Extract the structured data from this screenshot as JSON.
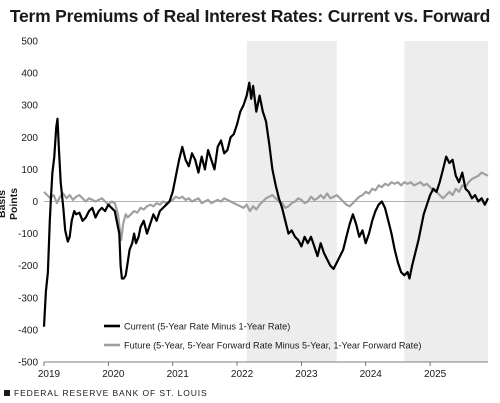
{
  "chart_data": {
    "type": "line",
    "title": "Term Premiums of Real Interest Rates: Current vs. Forward",
    "xlabel": "",
    "ylabel": "Basis Points",
    "xlim": [
      2019.0,
      2025.9
    ],
    "ylim": [
      -500,
      500
    ],
    "yticks": [
      500,
      400,
      300,
      200,
      100,
      0,
      -100,
      -200,
      -300,
      -400,
      -500
    ],
    "xticks": [
      {
        "label": "2019",
        "value": 2019.0
      },
      {
        "label": "2020",
        "value": 2020.0
      },
      {
        "label": "2021",
        "value": 2021.0
      },
      {
        "label": "2022",
        "value": 2022.0
      },
      {
        "label": "2023",
        "value": 2023.0
      },
      {
        "label": "2024",
        "value": 2024.0
      },
      {
        "label": "2025",
        "value": 2025.0
      }
    ],
    "grid": false,
    "legend_position": "bottom-left",
    "shaded_periods": [
      [
        2022.15,
        2023.55
      ],
      [
        2024.6,
        2025.9
      ]
    ],
    "series": [
      {
        "name": "Current (5-Year Rate Minus 1-Year Rate)",
        "color": "#000000",
        "points": [
          [
            2019.0,
            -390
          ],
          [
            2019.03,
            -280
          ],
          [
            2019.06,
            -220
          ],
          [
            2019.09,
            -60
          ],
          [
            2019.11,
            20
          ],
          [
            2019.13,
            90
          ],
          [
            2019.16,
            140
          ],
          [
            2019.19,
            230
          ],
          [
            2019.21,
            258
          ],
          [
            2019.23,
            170
          ],
          [
            2019.26,
            60
          ],
          [
            2019.3,
            -20
          ],
          [
            2019.33,
            -90
          ],
          [
            2019.37,
            -125
          ],
          [
            2019.4,
            -110
          ],
          [
            2019.43,
            -60
          ],
          [
            2019.47,
            -30
          ],
          [
            2019.5,
            -40
          ],
          [
            2019.55,
            -35
          ],
          [
            2019.6,
            -60
          ],
          [
            2019.65,
            -50
          ],
          [
            2019.7,
            -30
          ],
          [
            2019.75,
            -20
          ],
          [
            2019.8,
            -50
          ],
          [
            2019.85,
            -30
          ],
          [
            2019.9,
            -20
          ],
          [
            2019.95,
            -30
          ],
          [
            2020.0,
            -10
          ],
          [
            2020.05,
            -20
          ],
          [
            2020.1,
            -30
          ],
          [
            2020.13,
            -60
          ],
          [
            2020.17,
            -100
          ],
          [
            2020.19,
            -200
          ],
          [
            2020.21,
            -240
          ],
          [
            2020.24,
            -240
          ],
          [
            2020.27,
            -230
          ],
          [
            2020.3,
            -190
          ],
          [
            2020.33,
            -150
          ],
          [
            2020.37,
            -130
          ],
          [
            2020.4,
            -100
          ],
          [
            2020.43,
            -130
          ],
          [
            2020.47,
            -110
          ],
          [
            2020.5,
            -80
          ],
          [
            2020.55,
            -60
          ],
          [
            2020.6,
            -100
          ],
          [
            2020.65,
            -70
          ],
          [
            2020.7,
            -40
          ],
          [
            2020.75,
            -60
          ],
          [
            2020.8,
            -30
          ],
          [
            2020.85,
            -20
          ],
          [
            2020.9,
            -10
          ],
          [
            2020.95,
            0
          ],
          [
            2021.0,
            30
          ],
          [
            2021.05,
            80
          ],
          [
            2021.1,
            130
          ],
          [
            2021.15,
            170
          ],
          [
            2021.2,
            130
          ],
          [
            2021.25,
            110
          ],
          [
            2021.3,
            150
          ],
          [
            2021.35,
            130
          ],
          [
            2021.4,
            90
          ],
          [
            2021.45,
            140
          ],
          [
            2021.5,
            100
          ],
          [
            2021.55,
            160
          ],
          [
            2021.6,
            130
          ],
          [
            2021.65,
            100
          ],
          [
            2021.7,
            170
          ],
          [
            2021.75,
            190
          ],
          [
            2021.8,
            150
          ],
          [
            2021.85,
            160
          ],
          [
            2021.9,
            200
          ],
          [
            2021.95,
            210
          ],
          [
            2022.0,
            240
          ],
          [
            2022.05,
            280
          ],
          [
            2022.1,
            300
          ],
          [
            2022.15,
            330
          ],
          [
            2022.19,
            370
          ],
          [
            2022.22,
            320
          ],
          [
            2022.25,
            360
          ],
          [
            2022.3,
            280
          ],
          [
            2022.35,
            330
          ],
          [
            2022.4,
            280
          ],
          [
            2022.45,
            250
          ],
          [
            2022.5,
            180
          ],
          [
            2022.55,
            100
          ],
          [
            2022.6,
            50
          ],
          [
            2022.65,
            10
          ],
          [
            2022.7,
            -20
          ],
          [
            2022.75,
            -60
          ],
          [
            2022.8,
            -100
          ],
          [
            2022.85,
            -90
          ],
          [
            2022.9,
            -110
          ],
          [
            2022.95,
            -120
          ],
          [
            2023.0,
            -140
          ],
          [
            2023.05,
            -110
          ],
          [
            2023.1,
            -130
          ],
          [
            2023.15,
            -110
          ],
          [
            2023.2,
            -140
          ],
          [
            2023.25,
            -170
          ],
          [
            2023.3,
            -130
          ],
          [
            2023.35,
            -160
          ],
          [
            2023.4,
            -180
          ],
          [
            2023.45,
            -200
          ],
          [
            2023.5,
            -210
          ],
          [
            2023.55,
            -190
          ],
          [
            2023.6,
            -170
          ],
          [
            2023.65,
            -150
          ],
          [
            2023.7,
            -110
          ],
          [
            2023.75,
            -70
          ],
          [
            2023.8,
            -40
          ],
          [
            2023.85,
            -70
          ],
          [
            2023.9,
            -110
          ],
          [
            2023.95,
            -90
          ],
          [
            2024.0,
            -130
          ],
          [
            2024.05,
            -100
          ],
          [
            2024.1,
            -60
          ],
          [
            2024.15,
            -30
          ],
          [
            2024.2,
            -10
          ],
          [
            2024.25,
            0
          ],
          [
            2024.3,
            -20
          ],
          [
            2024.35,
            -60
          ],
          [
            2024.4,
            -100
          ],
          [
            2024.45,
            -150
          ],
          [
            2024.5,
            -190
          ],
          [
            2024.55,
            -220
          ],
          [
            2024.6,
            -230
          ],
          [
            2024.65,
            -220
          ],
          [
            2024.68,
            -240
          ],
          [
            2024.72,
            -200
          ],
          [
            2024.77,
            -160
          ],
          [
            2024.82,
            -120
          ],
          [
            2024.86,
            -80
          ],
          [
            2024.9,
            -40
          ],
          [
            2024.95,
            -10
          ],
          [
            2025.0,
            20
          ],
          [
            2025.05,
            40
          ],
          [
            2025.1,
            30
          ],
          [
            2025.15,
            60
          ],
          [
            2025.2,
            100
          ],
          [
            2025.25,
            140
          ],
          [
            2025.3,
            120
          ],
          [
            2025.35,
            130
          ],
          [
            2025.4,
            80
          ],
          [
            2025.45,
            60
          ],
          [
            2025.5,
            90
          ],
          [
            2025.55,
            40
          ],
          [
            2025.6,
            30
          ],
          [
            2025.65,
            10
          ],
          [
            2025.7,
            20
          ],
          [
            2025.75,
            0
          ],
          [
            2025.8,
            10
          ],
          [
            2025.85,
            -10
          ],
          [
            2025.9,
            10
          ]
        ]
      },
      {
        "name": "Future (5-Year, 5-Year Forward Rate Minus 5-Year, 1-Year Forward Rate)",
        "color": "#a0a0a0",
        "points": [
          [
            2019.0,
            30
          ],
          [
            2019.05,
            20
          ],
          [
            2019.1,
            10
          ],
          [
            2019.15,
            20
          ],
          [
            2019.2,
            -5
          ],
          [
            2019.25,
            15
          ],
          [
            2019.3,
            25
          ],
          [
            2019.35,
            10
          ],
          [
            2019.4,
            20
          ],
          [
            2019.45,
            5
          ],
          [
            2019.5,
            15
          ],
          [
            2019.55,
            20
          ],
          [
            2019.6,
            10
          ],
          [
            2019.65,
            0
          ],
          [
            2019.7,
            10
          ],
          [
            2019.75,
            5
          ],
          [
            2019.8,
            0
          ],
          [
            2019.85,
            5
          ],
          [
            2019.9,
            10
          ],
          [
            2019.95,
            0
          ],
          [
            2020.0,
            -10
          ],
          [
            2020.05,
            0
          ],
          [
            2020.1,
            -5
          ],
          [
            2020.15,
            -40
          ],
          [
            2020.18,
            -90
          ],
          [
            2020.2,
            -120
          ],
          [
            2020.23,
            -70
          ],
          [
            2020.27,
            -40
          ],
          [
            2020.3,
            -50
          ],
          [
            2020.35,
            -40
          ],
          [
            2020.4,
            -30
          ],
          [
            2020.45,
            -35
          ],
          [
            2020.5,
            -20
          ],
          [
            2020.55,
            -25
          ],
          [
            2020.6,
            -15
          ],
          [
            2020.65,
            -10
          ],
          [
            2020.7,
            -15
          ],
          [
            2020.75,
            -5
          ],
          [
            2020.8,
            -10
          ],
          [
            2020.85,
            0
          ],
          [
            2020.9,
            -5
          ],
          [
            2020.95,
            0
          ],
          [
            2021.0,
            5
          ],
          [
            2021.05,
            15
          ],
          [
            2021.1,
            10
          ],
          [
            2021.15,
            15
          ],
          [
            2021.2,
            5
          ],
          [
            2021.25,
            10
          ],
          [
            2021.3,
            0
          ],
          [
            2021.35,
            5
          ],
          [
            2021.4,
            10
          ],
          [
            2021.45,
            -5
          ],
          [
            2021.5,
            0
          ],
          [
            2021.55,
            5
          ],
          [
            2021.6,
            -5
          ],
          [
            2021.65,
            0
          ],
          [
            2021.7,
            5
          ],
          [
            2021.75,
            0
          ],
          [
            2021.8,
            10
          ],
          [
            2021.85,
            5
          ],
          [
            2021.9,
            0
          ],
          [
            2021.95,
            -5
          ],
          [
            2022.0,
            -10
          ],
          [
            2022.05,
            -15
          ],
          [
            2022.1,
            -20
          ],
          [
            2022.15,
            -10
          ],
          [
            2022.2,
            -30
          ],
          [
            2022.25,
            -15
          ],
          [
            2022.3,
            -25
          ],
          [
            2022.35,
            -10
          ],
          [
            2022.4,
            0
          ],
          [
            2022.45,
            10
          ],
          [
            2022.5,
            15
          ],
          [
            2022.55,
            20
          ],
          [
            2022.6,
            10
          ],
          [
            2022.65,
            0
          ],
          [
            2022.7,
            -5
          ],
          [
            2022.75,
            -20
          ],
          [
            2022.8,
            -15
          ],
          [
            2022.85,
            -5
          ],
          [
            2022.9,
            0
          ],
          [
            2022.95,
            10
          ],
          [
            2023.0,
            5
          ],
          [
            2023.05,
            -5
          ],
          [
            2023.1,
            0
          ],
          [
            2023.15,
            15
          ],
          [
            2023.2,
            5
          ],
          [
            2023.25,
            10
          ],
          [
            2023.3,
            20
          ],
          [
            2023.35,
            10
          ],
          [
            2023.4,
            25
          ],
          [
            2023.45,
            10
          ],
          [
            2023.5,
            15
          ],
          [
            2023.55,
            20
          ],
          [
            2023.6,
            10
          ],
          [
            2023.65,
            0
          ],
          [
            2023.7,
            -10
          ],
          [
            2023.75,
            -15
          ],
          [
            2023.8,
            -5
          ],
          [
            2023.85,
            5
          ],
          [
            2023.9,
            15
          ],
          [
            2023.95,
            20
          ],
          [
            2024.0,
            30
          ],
          [
            2024.05,
            25
          ],
          [
            2024.1,
            40
          ],
          [
            2024.15,
            35
          ],
          [
            2024.2,
            50
          ],
          [
            2024.25,
            45
          ],
          [
            2024.3,
            55
          ],
          [
            2024.35,
            50
          ],
          [
            2024.4,
            60
          ],
          [
            2024.45,
            55
          ],
          [
            2024.5,
            60
          ],
          [
            2024.55,
            50
          ],
          [
            2024.6,
            60
          ],
          [
            2024.65,
            55
          ],
          [
            2024.7,
            60
          ],
          [
            2024.75,
            50
          ],
          [
            2024.8,
            55
          ],
          [
            2024.85,
            60
          ],
          [
            2024.9,
            50
          ],
          [
            2024.95,
            55
          ],
          [
            2025.0,
            45
          ],
          [
            2025.05,
            35
          ],
          [
            2025.1,
            30
          ],
          [
            2025.15,
            20
          ],
          [
            2025.2,
            10
          ],
          [
            2025.25,
            20
          ],
          [
            2025.3,
            30
          ],
          [
            2025.35,
            20
          ],
          [
            2025.4,
            40
          ],
          [
            2025.45,
            30
          ],
          [
            2025.5,
            50
          ],
          [
            2025.55,
            45
          ],
          [
            2025.6,
            60
          ],
          [
            2025.65,
            70
          ],
          [
            2025.7,
            75
          ],
          [
            2025.75,
            80
          ],
          [
            2025.8,
            90
          ],
          [
            2025.85,
            85
          ],
          [
            2025.9,
            80
          ]
        ]
      }
    ]
  },
  "footer": {
    "source": "FEDERAL RESERVE BANK OF ST. LOUIS"
  }
}
